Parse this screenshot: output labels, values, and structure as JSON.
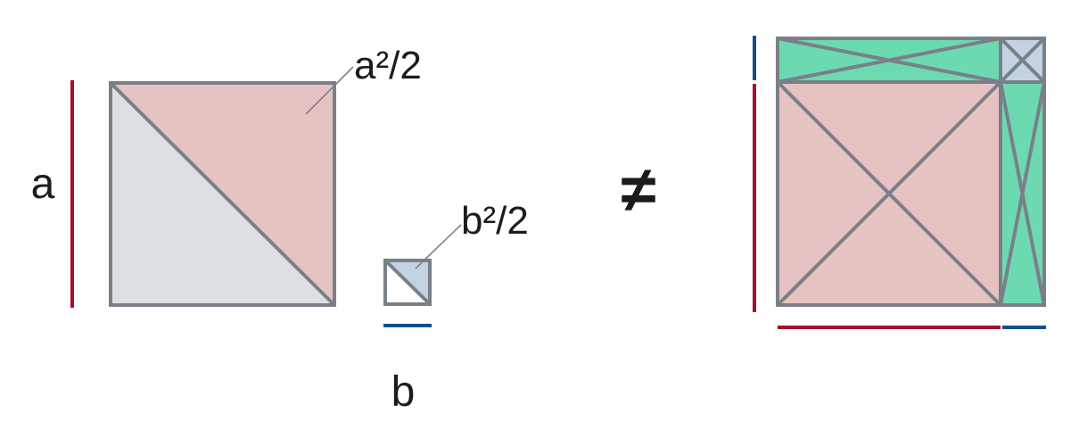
{
  "labels": {
    "side_a": "a",
    "side_b": "b",
    "area_a_half": "a²/2",
    "area_b_half": "b²/2",
    "not_equal": "≠"
  },
  "colors": {
    "red_fill": "#e6c2c2",
    "gray_fill": "#dcdfe3",
    "blue_fill": "#c3d3e3",
    "green_fill": "#6dd9b1",
    "outline": "#7a8088",
    "side_a_line": "#a5102a",
    "side_b_line": "#134f8c"
  }
}
